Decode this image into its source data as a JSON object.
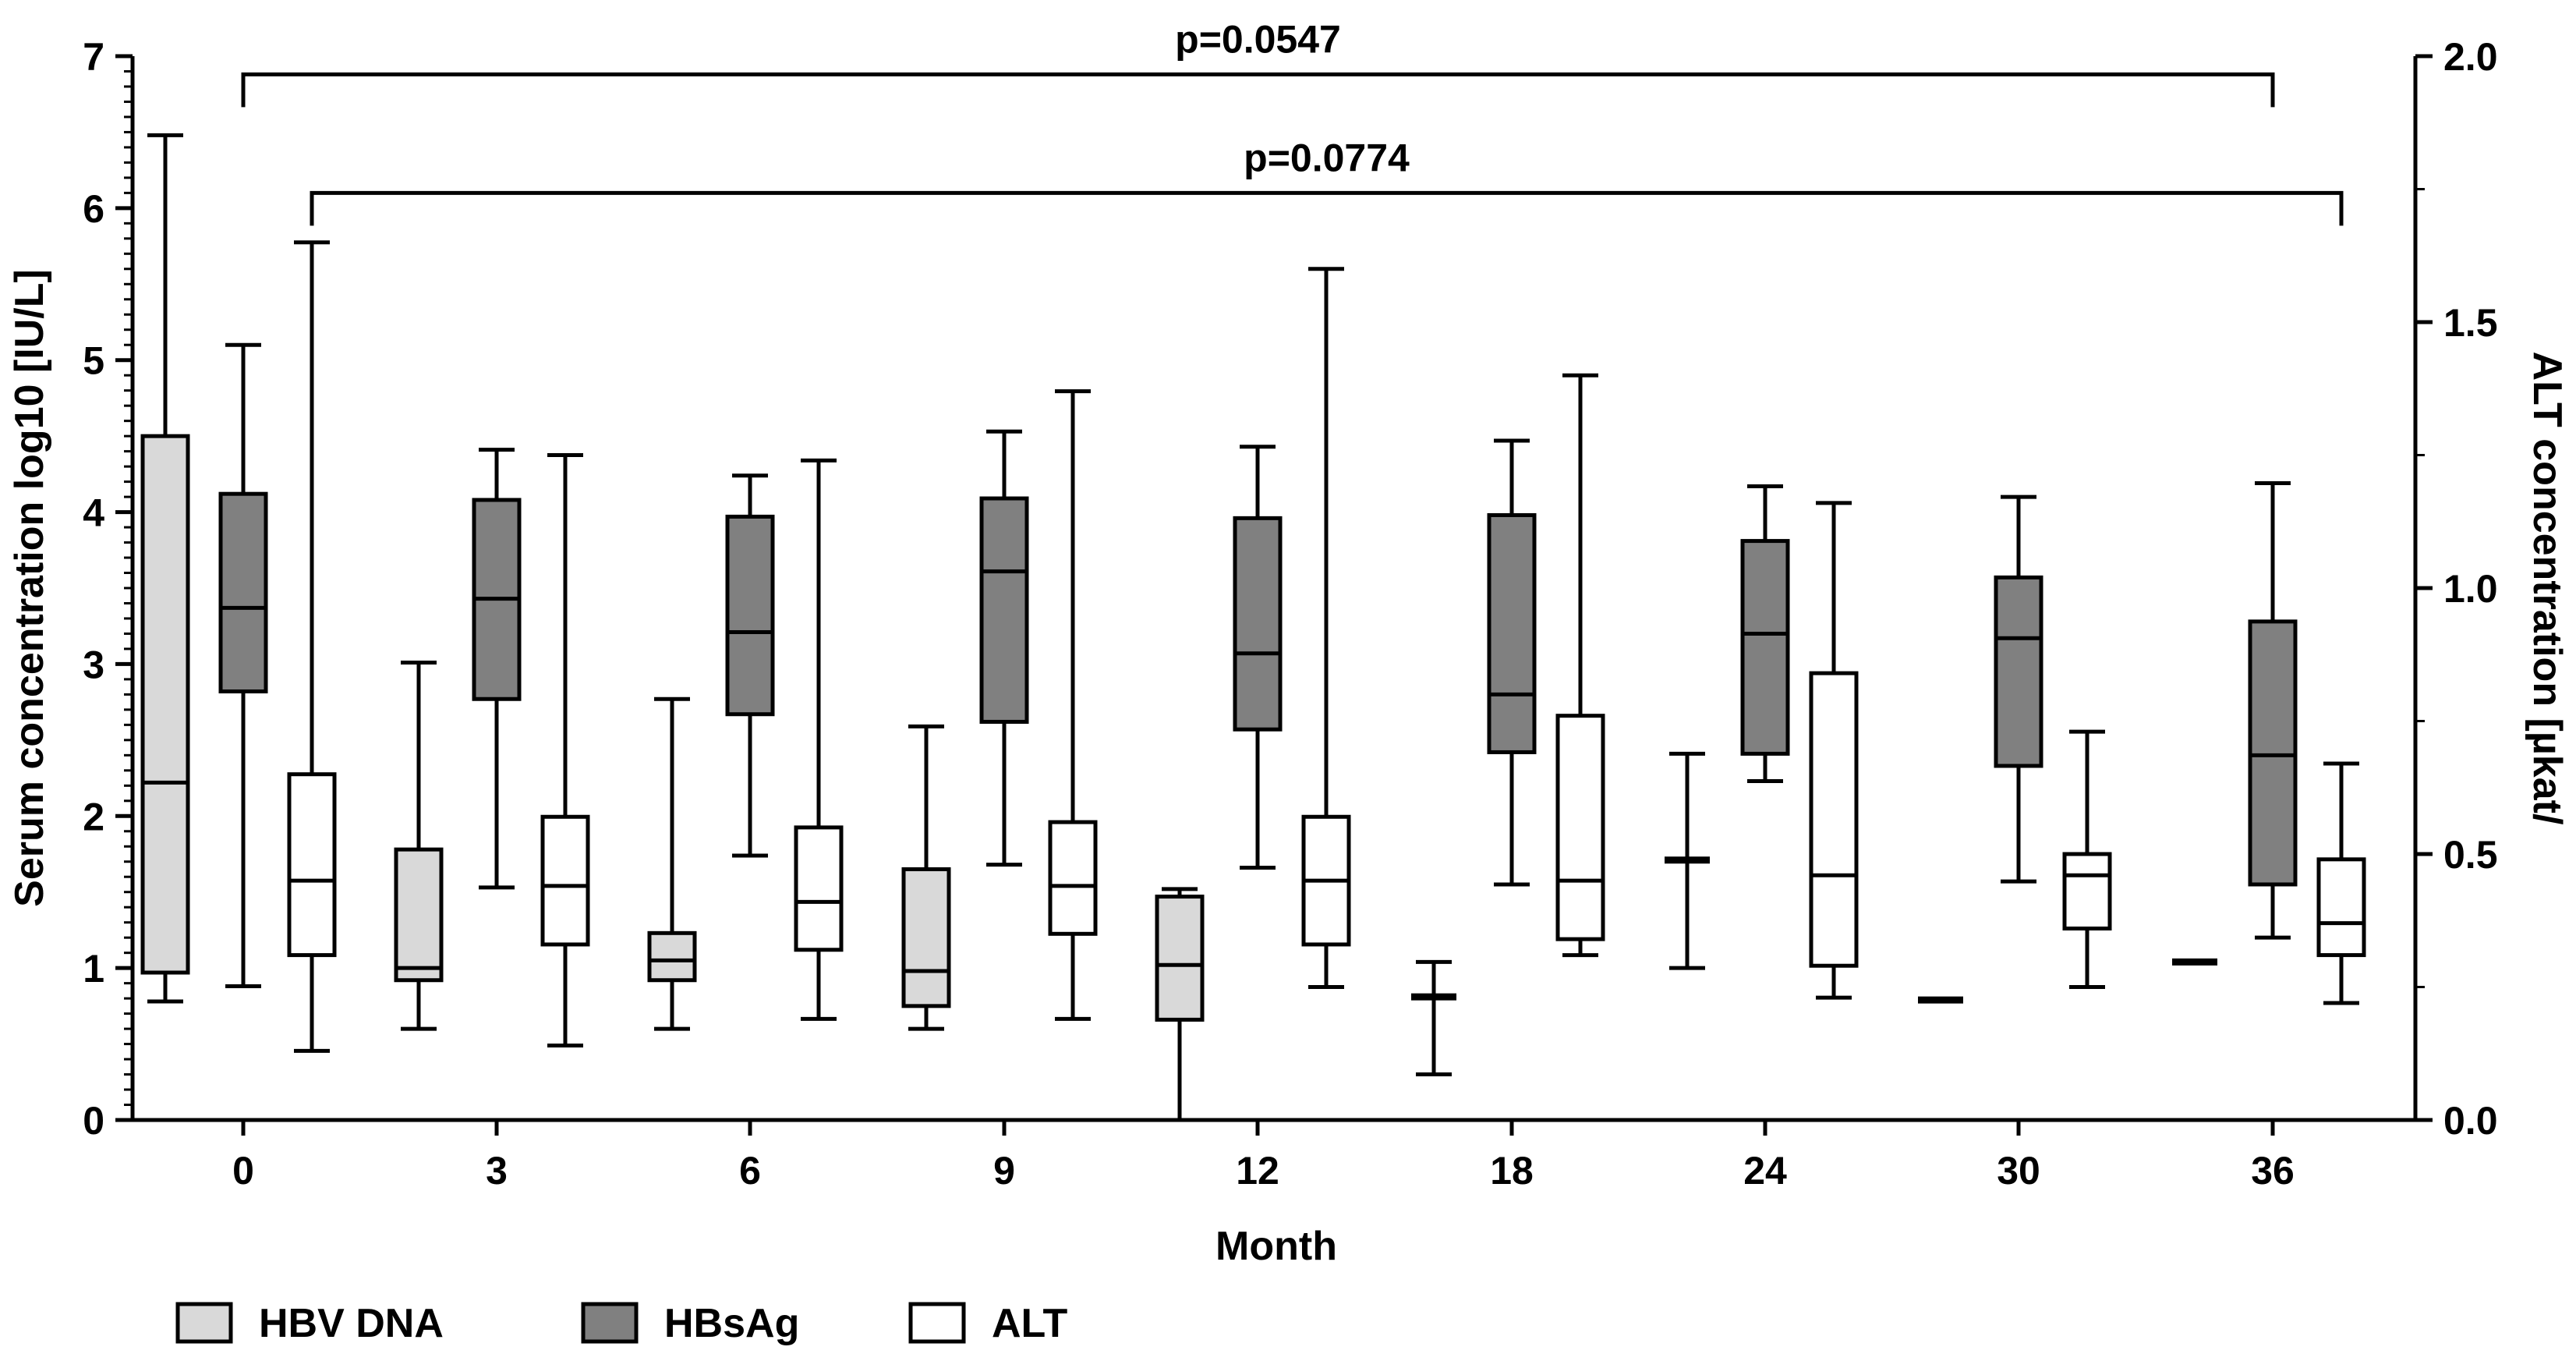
{
  "chart_data": {
    "type": "box",
    "x_label": "Month",
    "y_label_left": "Serum concentration log10 [IU/L]",
    "y_label_right": "ALT concentration [µkat/",
    "y_range_left": [
      0,
      7
    ],
    "y_range_right": [
      0,
      2.0
    ],
    "y_ticks_left": [
      "0",
      "1",
      "2",
      "3",
      "4",
      "5",
      "6",
      "7"
    ],
    "y_ticks_right": [
      "0.0",
      "0.5",
      "1.0",
      "1.5",
      "2.0"
    ],
    "categories": [
      "0",
      "3",
      "6",
      "9",
      "12",
      "18",
      "24",
      "30",
      "36"
    ],
    "colors": {
      "HBV DNA": "#d9d9d9",
      "HBsAg": "#808080",
      "ALT": "#ffffff",
      "stroke": "#000000"
    },
    "legend": [
      "HBV DNA",
      "HBsAg",
      "ALT"
    ],
    "series": [
      {
        "name": "HBV DNA",
        "axis": "left",
        "boxes": [
          {
            "min": 0.78,
            "q1": 0.97,
            "median": 2.22,
            "q3": 4.5,
            "max": 6.48
          },
          {
            "min": 0.6,
            "q1": 0.92,
            "median": 1.0,
            "q3": 1.78,
            "max": 3.01
          },
          {
            "min": 0.6,
            "q1": 0.92,
            "median": 1.05,
            "q3": 1.23,
            "max": 2.77
          },
          {
            "min": 0.6,
            "q1": 0.75,
            "median": 0.98,
            "q3": 1.65,
            "max": 2.59
          },
          {
            "min": 0.0,
            "q1": 0.66,
            "median": 1.02,
            "q3": 1.47,
            "max": 1.52
          },
          {
            "min": 0.3,
            "q1": 0.81,
            "median": 0.81,
            "q3": 0.81,
            "max": 1.04
          },
          {
            "min": 1.0,
            "q1": 1.71,
            "median": 1.71,
            "q3": 1.71,
            "max": 2.41
          },
          {
            "min": 0.79,
            "q1": 0.79,
            "median": 0.79,
            "q3": 0.79,
            "max": 0.79
          },
          {
            "min": 1.04,
            "q1": 1.04,
            "median": 1.04,
            "q3": 1.04,
            "max": 1.04
          }
        ]
      },
      {
        "name": "HBsAg",
        "axis": "left",
        "boxes": [
          {
            "min": 0.88,
            "q1": 2.82,
            "median": 3.37,
            "q3": 4.12,
            "max": 5.1
          },
          {
            "min": 1.53,
            "q1": 2.77,
            "median": 3.43,
            "q3": 4.08,
            "max": 4.41
          },
          {
            "min": 1.74,
            "q1": 2.67,
            "median": 3.21,
            "q3": 3.97,
            "max": 4.24
          },
          {
            "min": 1.68,
            "q1": 2.62,
            "median": 3.61,
            "q3": 4.09,
            "max": 4.53
          },
          {
            "min": 1.66,
            "q1": 2.57,
            "median": 3.07,
            "q3": 3.96,
            "max": 4.43
          },
          {
            "min": 1.55,
            "q1": 2.42,
            "median": 2.8,
            "q3": 3.98,
            "max": 4.47
          },
          {
            "min": 2.23,
            "q1": 2.41,
            "median": 3.2,
            "q3": 3.81,
            "max": 4.17
          },
          {
            "min": 1.57,
            "q1": 2.33,
            "median": 3.17,
            "q3": 3.57,
            "max": 4.1
          },
          {
            "min": 1.2,
            "q1": 1.55,
            "median": 2.4,
            "q3": 3.28,
            "max": 4.19
          }
        ]
      },
      {
        "name": "ALT",
        "axis": "right",
        "boxes": [
          {
            "min": 0.13,
            "q1": 0.31,
            "median": 0.45,
            "q3": 0.65,
            "max": 1.65
          },
          {
            "min": 0.14,
            "q1": 0.33,
            "median": 0.44,
            "q3": 0.57,
            "max": 1.25
          },
          {
            "min": 0.19,
            "q1": 0.32,
            "median": 0.41,
            "q3": 0.55,
            "max": 1.24
          },
          {
            "min": 0.19,
            "q1": 0.35,
            "median": 0.44,
            "q3": 0.56,
            "max": 1.37
          },
          {
            "min": 0.25,
            "q1": 0.33,
            "median": 0.45,
            "q3": 0.57,
            "max": 1.6
          },
          {
            "min": 0.31,
            "q1": 0.34,
            "median": 0.45,
            "q3": 0.76,
            "max": 1.4
          },
          {
            "min": 0.23,
            "q1": 0.29,
            "median": 0.46,
            "q3": 0.84,
            "max": 1.16
          },
          {
            "min": 0.25,
            "q1": 0.36,
            "median": 0.46,
            "q3": 0.5,
            "max": 0.73
          },
          {
            "min": 0.22,
            "q1": 0.31,
            "median": 0.37,
            "q3": 0.49,
            "max": 0.67
          }
        ]
      }
    ],
    "annotations": [
      {
        "text": "p=0.0547",
        "from_category": "0",
        "from_series": "HBsAg",
        "to_category": "36",
        "to_series": "HBsAg",
        "y": 6.88
      },
      {
        "text": "p=0.0774",
        "from_category": "0",
        "from_series": "ALT",
        "to_category": "36",
        "to_series": "ALT",
        "y": 6.1
      }
    ]
  }
}
